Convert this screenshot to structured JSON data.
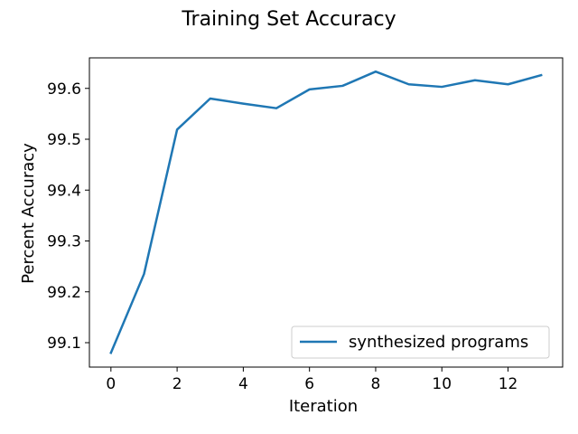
{
  "chart_data": {
    "type": "line",
    "title": "Training Set Accuracy",
    "xlabel": "Iteration",
    "ylabel": "Percent Accuracy",
    "xlim": [
      -0.65,
      13.65
    ],
    "ylim": [
      99.052,
      99.66
    ],
    "xticks": [
      0,
      2,
      4,
      6,
      8,
      10,
      12
    ],
    "yticks": [
      99.1,
      99.2,
      99.3,
      99.4,
      99.5,
      99.6
    ],
    "xtick_labels": [
      "0",
      "2",
      "4",
      "6",
      "8",
      "10",
      "12"
    ],
    "ytick_labels": [
      "99.1",
      "99.2",
      "99.3",
      "99.4",
      "99.5",
      "99.6"
    ],
    "grid": false,
    "legend_position": "lower-right",
    "series": [
      {
        "name": "synthesized programs",
        "color": "#1f77b4",
        "x": [
          0,
          1,
          2,
          3,
          4,
          5,
          6,
          7,
          8,
          9,
          10,
          11,
          12,
          13
        ],
        "values": [
          99.08,
          99.235,
          99.519,
          99.58,
          99.57,
          99.561,
          99.598,
          99.605,
          99.633,
          99.608,
          99.603,
          99.616,
          99.608,
          99.626
        ]
      }
    ]
  }
}
